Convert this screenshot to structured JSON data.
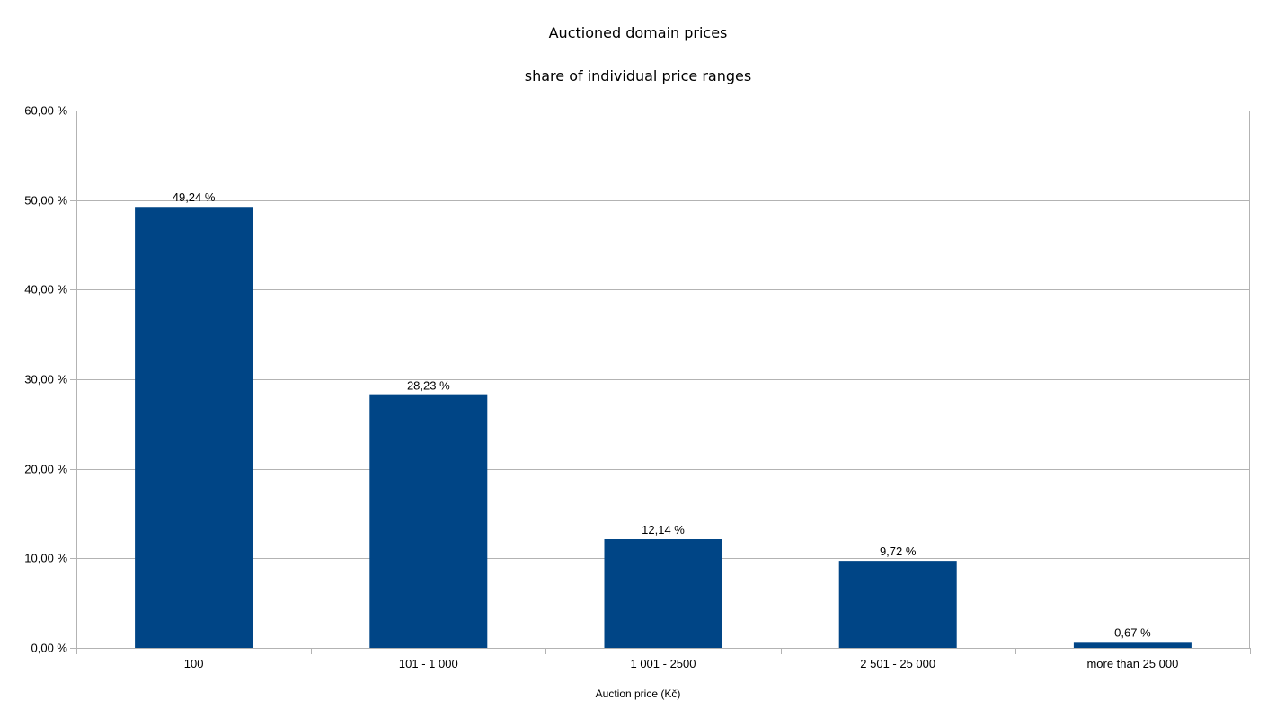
{
  "chart_data": {
    "type": "bar",
    "title": "Auctioned domain prices",
    "subtitle": "share of individual price ranges",
    "xlabel": "Auction price (Kč)",
    "ylabel": "",
    "categories": [
      "100",
      "101 - 1 000",
      "1 001 - 2500",
      "2 501 - 25 000",
      "more than 25 000"
    ],
    "values": [
      49.24,
      28.23,
      12.14,
      9.72,
      0.67
    ],
    "data_labels": [
      "49,24 %",
      "28,23 %",
      "12,14 %",
      "9,72 %",
      "0,67 %"
    ],
    "ylim": [
      0,
      60
    ],
    "yticks": [
      0,
      10,
      20,
      30,
      40,
      50,
      60
    ],
    "ytick_labels": [
      "0,00 %",
      "10,00 %",
      "20,00 %",
      "30,00 %",
      "40,00 %",
      "50,00 %",
      "60,00 %"
    ],
    "grid": true,
    "legend": "none",
    "colors": {
      "bar": "#004586",
      "grid": "#b3b3b3",
      "axis": "#b3b3b3"
    }
  }
}
